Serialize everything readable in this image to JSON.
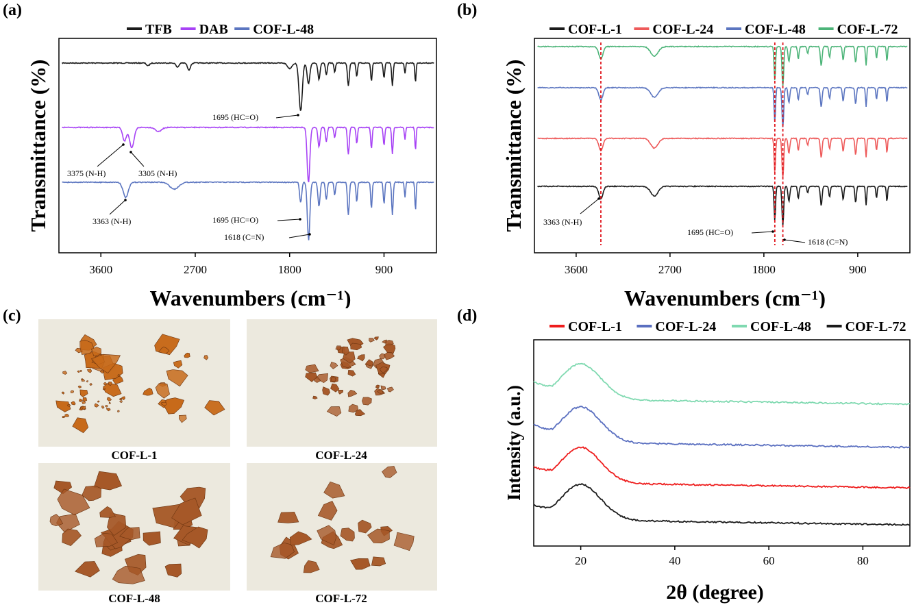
{
  "panels": {
    "a": {
      "label": "(a)"
    },
    "b": {
      "label": "(b)"
    },
    "c": {
      "label": "(c)"
    },
    "d": {
      "label": "(d)"
    }
  },
  "colors": {
    "black": "#1a1a1a",
    "purple": "#a742f5",
    "blue": "#5b75c0",
    "red": "#ee5a5a",
    "green": "#4cb478",
    "xrd_red": "#ee1c1c",
    "xrd_blue": "#5a6fc0",
    "xrd_green": "#7fd9b0",
    "cof_orange": "#c76a1a",
    "cof_brown": "#a65828"
  },
  "chart_data": [
    {
      "id": "a",
      "type": "line",
      "ylabel": "Transmittance (%)",
      "xlabel": "Wavenumbers (cm⁻¹)",
      "xticks": [
        "3600",
        "2700",
        "1800",
        "900"
      ],
      "xlim": [
        4000,
        400
      ],
      "x_reversed": true,
      "legend_position": "top",
      "series": [
        {
          "name": "TFB",
          "color": "black"
        },
        {
          "name": "DAB",
          "color": "purple"
        },
        {
          "name": "COF-L-48",
          "color": "blue"
        }
      ],
      "annotations": [
        {
          "text": "1695 (HC=O)",
          "series": "TFB"
        },
        {
          "text": "3375 (N-H)",
          "series": "DAB"
        },
        {
          "text": "3305 (N-H)",
          "series": "DAB"
        },
        {
          "text": "3363 (N-H)",
          "series": "COF-L-48"
        },
        {
          "text": "1695 (HC=O)",
          "series": "COF-L-48"
        },
        {
          "text": "1618 (C=N)",
          "series": "COF-L-48"
        }
      ]
    },
    {
      "id": "b",
      "type": "line",
      "ylabel": "Transmittance (%)",
      "xlabel": "Wavenumbers (cm⁻¹)",
      "xticks": [
        "3600",
        "2700",
        "1800",
        "900"
      ],
      "xlim": [
        4000,
        400
      ],
      "x_reversed": true,
      "legend_position": "top",
      "series": [
        {
          "name": "COF-L-1",
          "color": "black"
        },
        {
          "name": "COF-L-24",
          "color": "red"
        },
        {
          "name": "COF-L-48",
          "color": "blue"
        },
        {
          "name": "COF-L-72",
          "color": "green"
        }
      ],
      "annotations": [
        {
          "text": "3363 (N-H)"
        },
        {
          "text": "1695 (HC=O)"
        },
        {
          "text": "1618 (C=N)"
        }
      ],
      "reference_lines": [
        3363,
        1695,
        1618
      ]
    },
    {
      "id": "d",
      "type": "line",
      "ylabel": "Intensity (a.u.)",
      "xlabel": "2θ (degree)",
      "xticks": [
        "20",
        "40",
        "60",
        "80"
      ],
      "xlim": [
        10,
        90
      ],
      "legend_position": "top",
      "peak_x": 20,
      "series": [
        {
          "name": "COF-L-1",
          "color": "xrd_red"
        },
        {
          "name": "COF-L-24",
          "color": "xrd_blue"
        },
        {
          "name": "COF-L-48",
          "color": "xrd_green"
        },
        {
          "name": "COF-L-72",
          "color": "black"
        }
      ]
    }
  ],
  "photos": [
    {
      "caption": "COF-L-1",
      "tone": "cof_orange"
    },
    {
      "caption": "COF-L-24",
      "tone": "cof_brown"
    },
    {
      "caption": "COF-L-48",
      "tone": "cof_brown"
    },
    {
      "caption": "COF-L-72",
      "tone": "cof_brown"
    }
  ]
}
